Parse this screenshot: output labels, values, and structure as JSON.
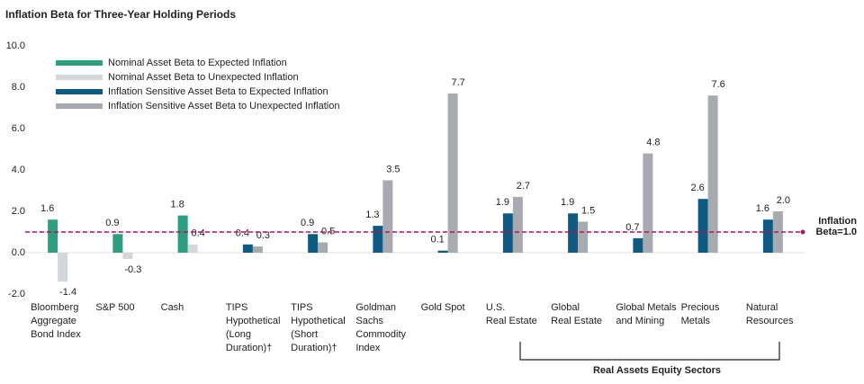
{
  "chart_data": {
    "type": "bar",
    "title": "Inflation Beta for Three-Year Holding Periods",
    "categories": [
      [
        "Bloomberg",
        "Aggregate",
        "Bond Index"
      ],
      [
        "S&P 500"
      ],
      [
        "Cash"
      ],
      [
        "TIPS",
        "Hypothetical",
        "(Long",
        "Duration)†"
      ],
      [
        "TIPS",
        "Hypothetical",
        "(Short",
        "Duration)†"
      ],
      [
        "Goldman",
        "Sachs",
        "Commodity",
        "Index"
      ],
      [
        "Gold Spot"
      ],
      [
        "U.S.",
        "Real Estate"
      ],
      [
        "Global",
        "Real Estate"
      ],
      [
        "Global Metals",
        "and Mining"
      ],
      [
        "Precious",
        "Metals"
      ],
      [
        "Natural",
        "Resources"
      ]
    ],
    "series": [
      {
        "name": "Nominal Asset Beta to Expected Inflation",
        "color": "#2f9e7e",
        "values": [
          1.6,
          0.9,
          1.8,
          null,
          null,
          null,
          null,
          null,
          null,
          null,
          null,
          null
        ],
        "value_labels": [
          "1.6",
          "0.9",
          "1.8",
          null,
          null,
          null,
          null,
          null,
          null,
          null,
          null,
          null
        ]
      },
      {
        "name": "Nominal Asset Beta to Unexpected Inflation",
        "color": "#d4d7d9",
        "values": [
          -1.4,
          -0.3,
          0.4,
          null,
          null,
          null,
          null,
          null,
          null,
          null,
          null,
          null
        ],
        "value_labels": [
          "-1.4",
          "-0.3",
          "0.4",
          null,
          null,
          null,
          null,
          null,
          null,
          null,
          null,
          null
        ]
      },
      {
        "name": "Inflation Sensitive Asset Beta to Expected Inflation",
        "color": "#0f5a80",
        "values": [
          null,
          null,
          null,
          0.4,
          0.9,
          1.3,
          0.1,
          1.9,
          1.9,
          0.7,
          2.6,
          1.6
        ],
        "value_labels": [
          null,
          null,
          null,
          "0.4",
          "0.9",
          "1.3",
          "0.1",
          "1.9",
          "1.9",
          "0.7",
          "2.6",
          "1.6"
        ]
      },
      {
        "name": "Inflation Sensitive Asset Beta to Unexpected Inflation",
        "color": "#a7abaf",
        "values": [
          null,
          null,
          null,
          0.3,
          0.5,
          3.5,
          7.7,
          2.7,
          1.5,
          4.8,
          7.6,
          2.0
        ],
        "value_labels": [
          null,
          null,
          null,
          "0.3",
          "0.5",
          "3.5",
          "7.7",
          "2.7",
          "1.5",
          "4.8",
          "7.6",
          "2.0"
        ]
      }
    ],
    "ylim": [
      -2,
      10
    ],
    "yticks": [
      {
        "value": -2,
        "label": "-2.0"
      },
      {
        "value": 0,
        "label": "0.0"
      },
      {
        "value": 2,
        "label": "2.0"
      },
      {
        "value": 4,
        "label": "4.0"
      },
      {
        "value": 6,
        "label": "6.0"
      },
      {
        "value": 8,
        "label": "8.0"
      },
      {
        "value": 10,
        "label": "10.0"
      }
    ],
    "grid": false,
    "legend": "upper-left",
    "reference_line": {
      "value": 1,
      "label": [
        "Inflation",
        "Beta=1.0"
      ],
      "color": "#a3195b"
    },
    "group_label": "Real Assets Equity Sectors"
  }
}
